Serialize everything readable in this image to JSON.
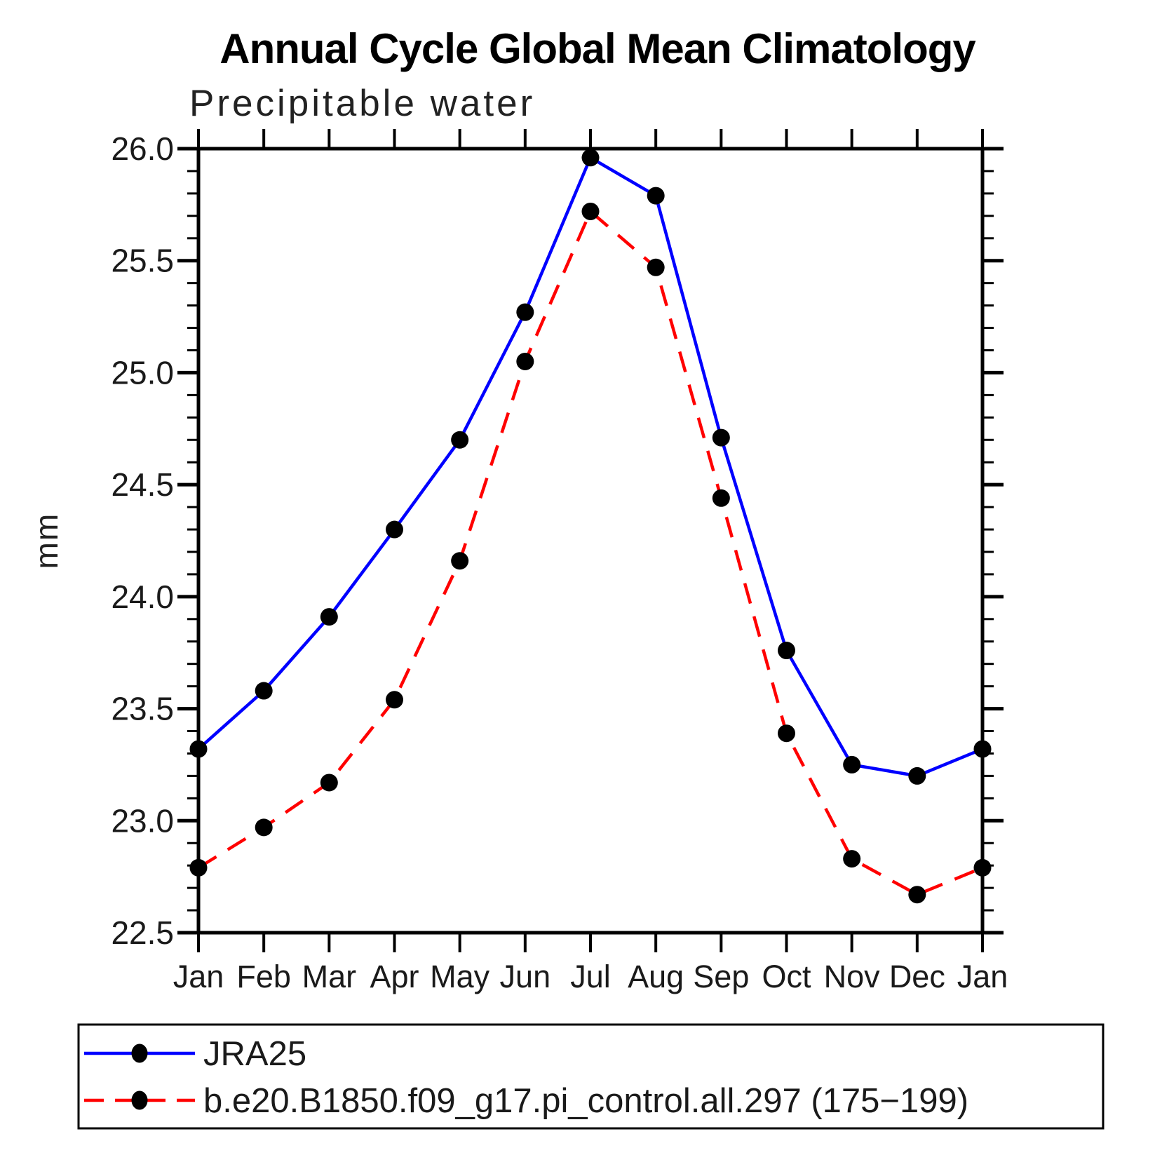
{
  "page": {
    "background": "#ffffff"
  },
  "chart_data": {
    "type": "line",
    "title": "Annual Cycle Global Mean Climatology",
    "subtitle": "Precipitable water",
    "ylabel": "mm",
    "xlabel": "",
    "categories": [
      "Jan",
      "Feb",
      "Mar",
      "Apr",
      "May",
      "Jun",
      "Jul",
      "Aug",
      "Sep",
      "Oct",
      "Nov",
      "Dec",
      "Jan"
    ],
    "ylim": [
      22.5,
      26.0
    ],
    "y_major_step": 0.5,
    "y_minor_step": 0.1,
    "y_tick_labels": [
      "26.0",
      "25.5",
      "25.0",
      "24.5",
      "24.0",
      "23.5",
      "23.0",
      "22.5"
    ],
    "grid": "off",
    "legend_position": "bottom",
    "axis_color": "#000000",
    "series": [
      {
        "name": "JRA25",
        "color": "#0000ff",
        "line_style": "solid",
        "marker": "circle",
        "marker_color": "#000000",
        "values": [
          23.32,
          23.58,
          23.91,
          24.3,
          24.7,
          25.27,
          25.96,
          25.79,
          24.71,
          23.76,
          23.25,
          23.2,
          23.32
        ]
      },
      {
        "name": "b.e20.B1850.f09_g17.pi_control.all.297 (175−199)",
        "color": "#ff0000",
        "line_style": "dashed",
        "marker": "circle",
        "marker_color": "#000000",
        "values": [
          22.79,
          22.97,
          23.17,
          23.54,
          24.16,
          25.05,
          25.72,
          25.47,
          24.44,
          23.39,
          22.83,
          22.67,
          22.79
        ]
      }
    ]
  }
}
